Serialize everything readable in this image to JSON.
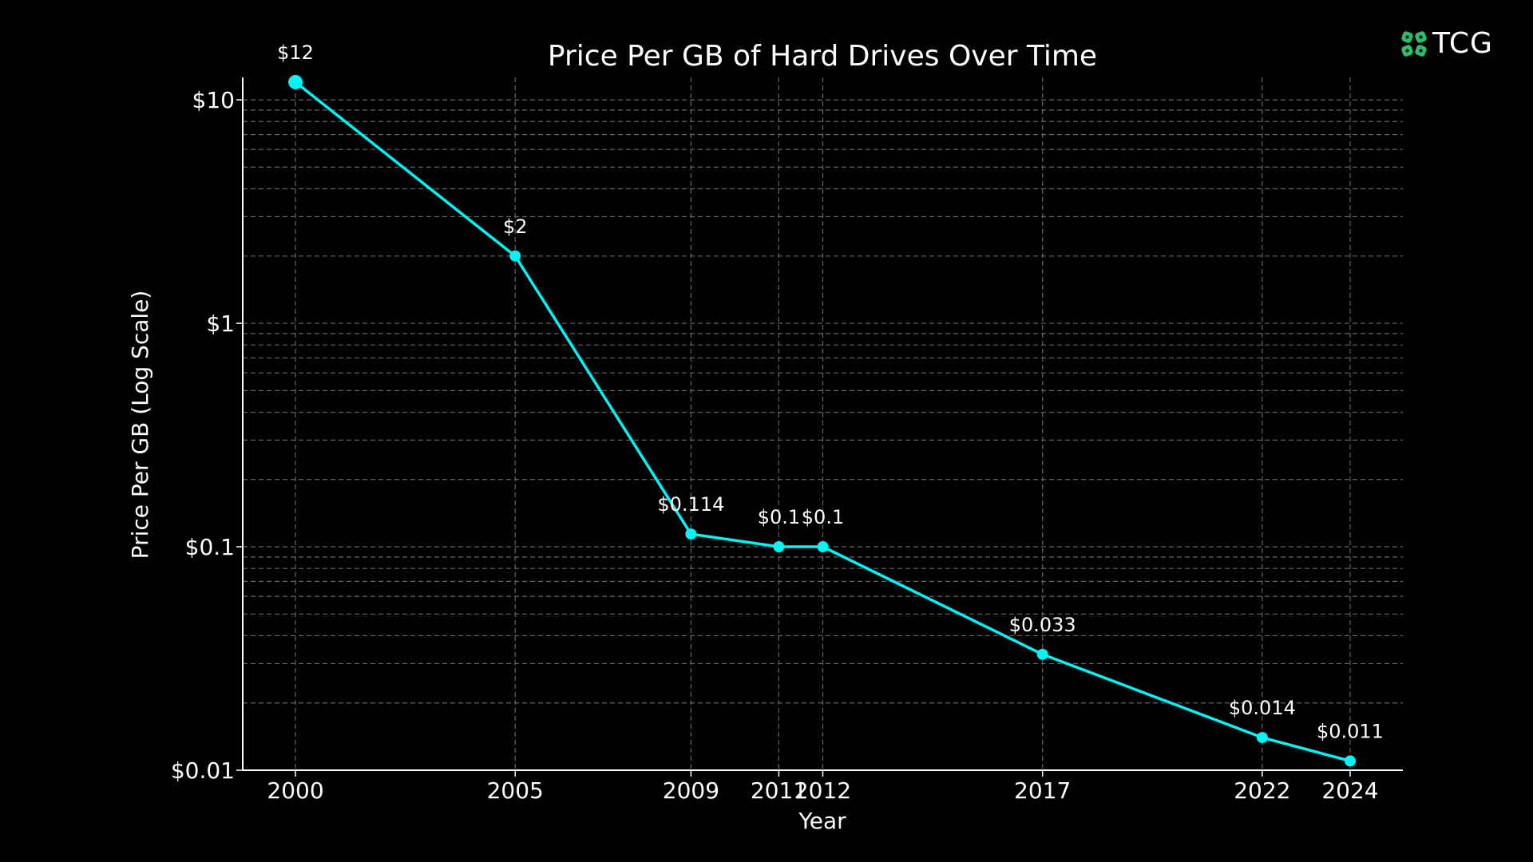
{
  "logo": {
    "text": "TCG",
    "color": "#2ebd6b"
  },
  "chart_data": {
    "type": "line",
    "title": "Price Per GB of Hard Drives Over Time",
    "xlabel": "Year",
    "ylabel": "Price Per GB (Log Scale)",
    "yscale": "log",
    "ylim": [
      0.01,
      12.6
    ],
    "xlim": [
      1998.8,
      2025.2
    ],
    "grid": true,
    "x": [
      2000,
      2005,
      2009,
      2011,
      2012,
      2017,
      2022,
      2024
    ],
    "x_tick_labels": [
      "2000",
      "2005",
      "2009",
      "2011",
      "2012",
      "2017",
      "2022",
      "2024"
    ],
    "y_ticks": [
      10,
      1,
      0.1,
      0.01
    ],
    "y_tick_labels": [
      "$10",
      "$1",
      "$0.1",
      "$0.01"
    ],
    "series": [
      {
        "values": [
          12,
          2,
          0.114,
          0.1,
          0.1,
          0.033,
          0.014,
          0.011
        ],
        "data_labels": [
          "$12",
          "$2",
          "$0.114",
          "$0.1",
          "$0.1",
          "$0.033",
          "$0.014",
          "$0.011"
        ],
        "color": "#00f5f5"
      }
    ],
    "background": "#000000"
  }
}
